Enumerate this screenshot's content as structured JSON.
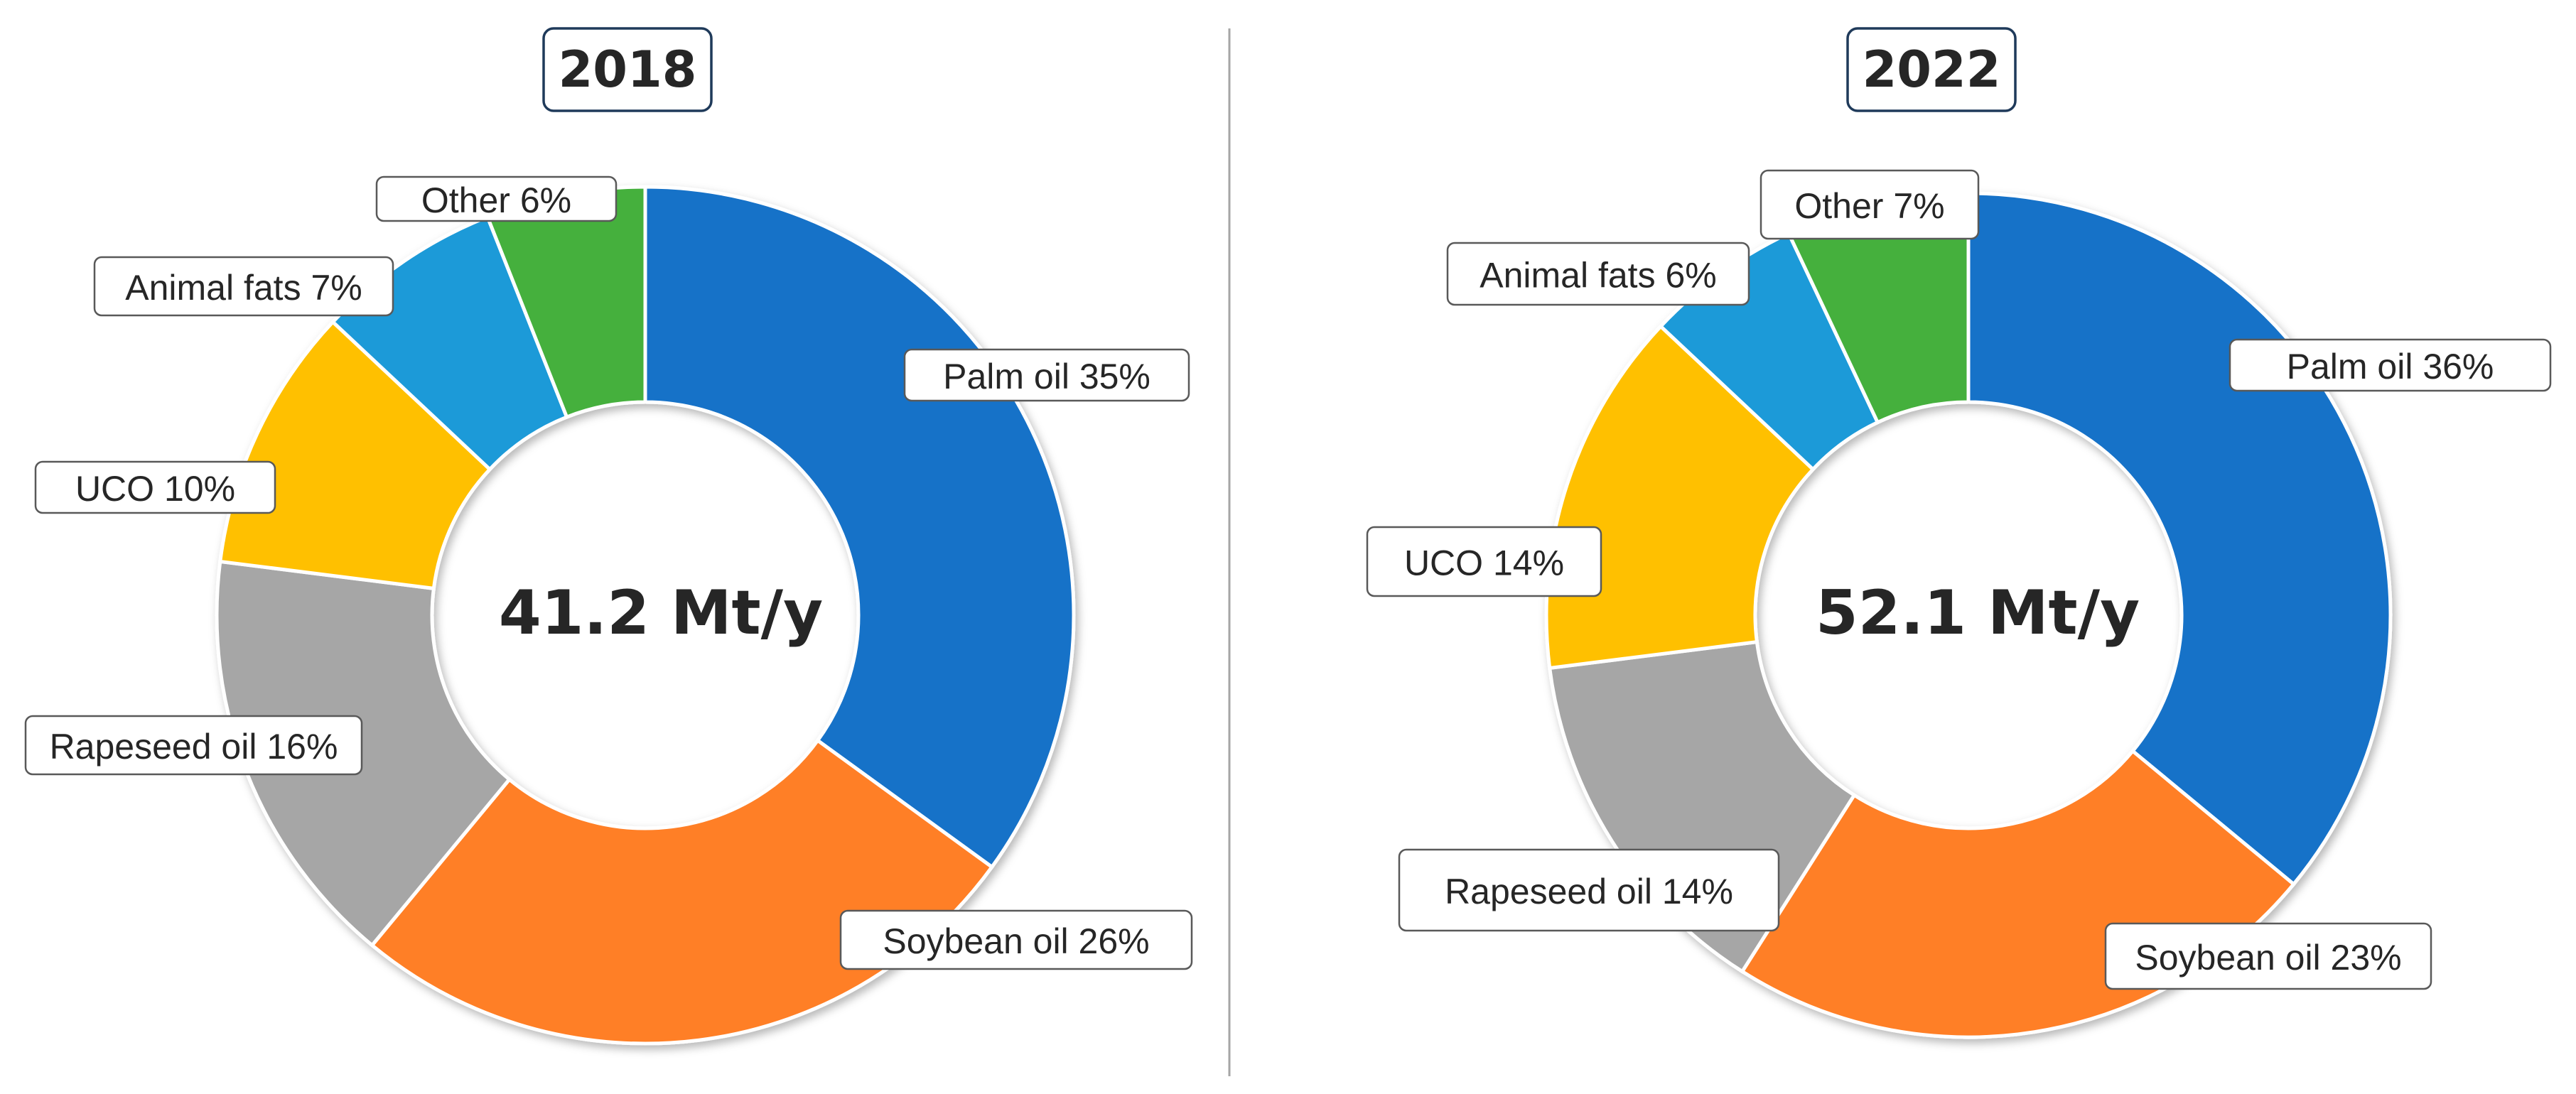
{
  "chart_data": [
    {
      "type": "pie",
      "variant": "donut",
      "title": "2018",
      "center_label": "41.2 Mt/y",
      "slices": [
        {
          "name": "Palm oil",
          "value": 35,
          "label": "Palm oil 35%",
          "color": "#1772C8"
        },
        {
          "name": "Soybean oil",
          "value": 26,
          "label": "Soybean oil 26%",
          "color": "#FF7F27"
        },
        {
          "name": "Rapeseed oil",
          "value": 16,
          "label": "Rapeseed oil  16%",
          "color": "#A6A6A6"
        },
        {
          "name": "UCO",
          "value": 10,
          "label": "UCO 10%",
          "color": "#FFC000"
        },
        {
          "name": "Animal fats",
          "value": 7,
          "label": "Animal fats 7%",
          "color": "#1E9AD8"
        },
        {
          "name": "Other",
          "value": 6,
          "label": "Other 6%",
          "color": "#45B03D"
        }
      ]
    },
    {
      "type": "pie",
      "variant": "donut",
      "title": "2022",
      "center_label": "52.1 Mt/y",
      "slices": [
        {
          "name": "Palm oil",
          "value": 36,
          "label": "Palm oil 36%",
          "color": "#1772C8"
        },
        {
          "name": "Soybean oil",
          "value": 23,
          "label": "Soybean oil 23%",
          "color": "#FF7F27"
        },
        {
          "name": "Rapeseed oil",
          "value": 14,
          "label": "Rapeseed oil  14%",
          "color": "#A6A6A6"
        },
        {
          "name": "UCO",
          "value": 14,
          "label": "UCO 14%",
          "color": "#FFC000"
        },
        {
          "name": "Animal fats",
          "value": 6,
          "label": "Animal fats 6%",
          "color": "#1E9AD8"
        },
        {
          "name": "Other",
          "value": 7,
          "label": "Other 7%",
          "color": "#45B03D"
        }
      ]
    }
  ]
}
